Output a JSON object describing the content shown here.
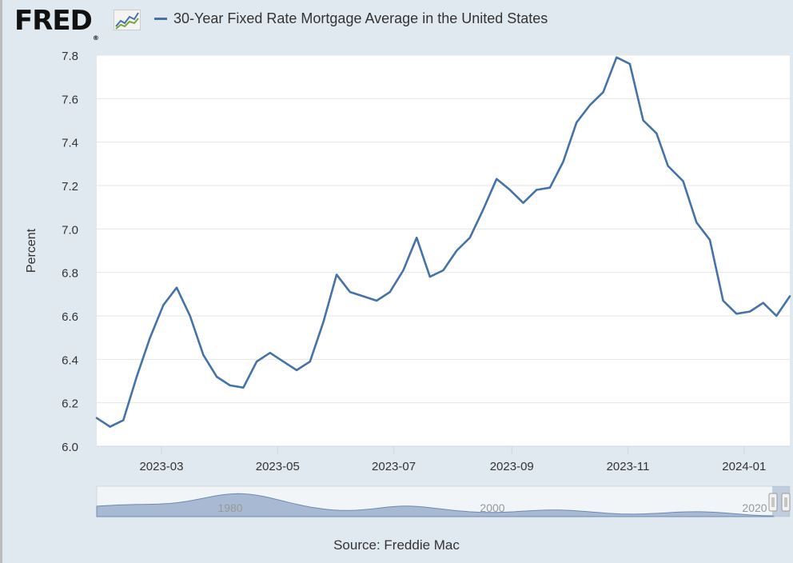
{
  "header": {
    "logo_text": "FRED",
    "logo_mark": "®",
    "logo_icon": "line-graph-icon",
    "legend_label": "30-Year Fixed Rate Mortgage Average in the United States"
  },
  "source_text": "Source: Freddie Mac",
  "colors": {
    "series": "#4572a7",
    "plot_background": "#ffffff",
    "page_background": "#e1e9f0",
    "navigator_fill": "#a8bad3",
    "navigator_line": "#6e8ab0"
  },
  "chart_data": {
    "type": "line",
    "title": "",
    "xlabel": "",
    "ylabel": "Percent",
    "ylim": [
      6.0,
      7.8
    ],
    "yticks": [
      6.0,
      6.2,
      6.4,
      6.6,
      6.8,
      7.0,
      7.2,
      7.4,
      7.6,
      7.8
    ],
    "ytick_labels": [
      "6.0",
      "6.2",
      "6.4",
      "6.6",
      "6.8",
      "7.0",
      "7.2",
      "7.4",
      "7.6",
      "7.8"
    ],
    "xlim": [
      "2023-01-26",
      "2024-01-25"
    ],
    "xticks": [
      "2023-03-01",
      "2023-05-01",
      "2023-07-01",
      "2023-09-01",
      "2023-11-01",
      "2024-01-01"
    ],
    "xtick_labels": [
      "2023-03",
      "2023-05",
      "2023-07",
      "2023-09",
      "2023-11",
      "2024-01"
    ],
    "grid": true,
    "legend": "top-left",
    "series": [
      {
        "name": "30-Year Fixed Rate Mortgage Average in the United States",
        "x": [
          "2023-01-26",
          "2023-02-02",
          "2023-02-09",
          "2023-02-16",
          "2023-02-23",
          "2023-03-02",
          "2023-03-09",
          "2023-03-16",
          "2023-03-23",
          "2023-03-30",
          "2023-04-06",
          "2023-04-13",
          "2023-04-20",
          "2023-04-27",
          "2023-05-04",
          "2023-05-11",
          "2023-05-18",
          "2023-05-25",
          "2023-06-01",
          "2023-06-08",
          "2023-06-15",
          "2023-06-22",
          "2023-06-29",
          "2023-07-06",
          "2023-07-13",
          "2023-07-20",
          "2023-07-27",
          "2023-08-03",
          "2023-08-10",
          "2023-08-17",
          "2023-08-24",
          "2023-08-31",
          "2023-09-07",
          "2023-09-14",
          "2023-09-21",
          "2023-09-28",
          "2023-10-05",
          "2023-10-12",
          "2023-10-19",
          "2023-10-26",
          "2023-11-02",
          "2023-11-09",
          "2023-11-16",
          "2023-11-22",
          "2023-11-30",
          "2023-12-07",
          "2023-12-14",
          "2023-12-21",
          "2023-12-28",
          "2024-01-04",
          "2024-01-11",
          "2024-01-18",
          "2024-01-25"
        ],
        "y": [
          6.13,
          6.09,
          6.12,
          6.32,
          6.5,
          6.65,
          6.73,
          6.6,
          6.42,
          6.32,
          6.28,
          6.27,
          6.39,
          6.43,
          6.39,
          6.35,
          6.39,
          6.57,
          6.79,
          6.71,
          6.69,
          6.67,
          6.71,
          6.81,
          6.96,
          6.78,
          6.81,
          6.9,
          6.96,
          7.09,
          7.23,
          7.18,
          7.12,
          7.18,
          7.19,
          7.31,
          7.49,
          7.57,
          7.63,
          7.79,
          7.76,
          7.5,
          7.44,
          7.29,
          7.22,
          7.03,
          6.95,
          6.67,
          6.61,
          6.62,
          6.66,
          6.6,
          6.69
        ]
      }
    ],
    "navigator": {
      "labels": [
        "1980",
        "2000",
        "2020"
      ]
    }
  }
}
